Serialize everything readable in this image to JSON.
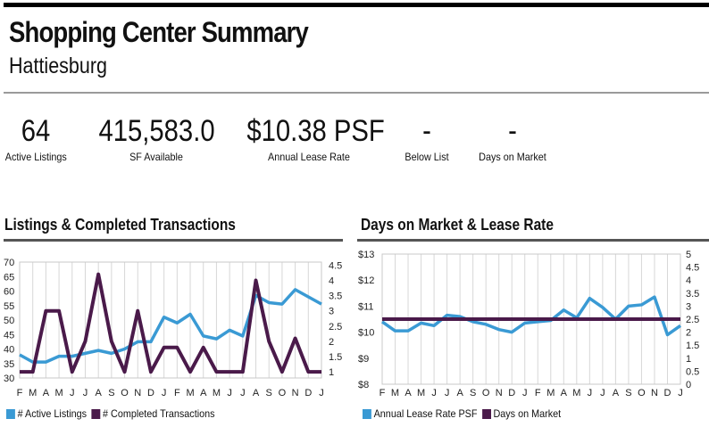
{
  "header": {
    "title": "Shopping Center Summary",
    "subtitle": "Hattiesburg"
  },
  "stats": [
    {
      "value": "64",
      "label": "Active Listings"
    },
    {
      "value": "415,583.0",
      "label": "SF Available"
    },
    {
      "value": "$10.38 PSF",
      "label": "Annual Lease Rate"
    },
    {
      "value": "-",
      "label": "Below List"
    },
    {
      "value": "-",
      "label": "Days on Market"
    }
  ],
  "sections": {
    "left_title": "Listings & Completed Transactions",
    "right_title": "Days on Market & Lease Rate"
  },
  "colors": {
    "blue": "#3a9ad4",
    "purple": "#4a1a4a",
    "grid": "#d7d7d7"
  },
  "chart_data": [
    {
      "type": "line",
      "title": "Listings & Completed Transactions",
      "categories": [
        "F",
        "M",
        "A",
        "M",
        "J",
        "J",
        "A",
        "S",
        "O",
        "N",
        "D",
        "J",
        "F",
        "M",
        "A",
        "M",
        "J",
        "J",
        "A",
        "S",
        "O",
        "N",
        "D",
        "J"
      ],
      "series": [
        {
          "name": "# Active Listings",
          "axis": "left",
          "color": "#3a9ad4",
          "values": [
            38,
            35.5,
            35.5,
            37.5,
            37.5,
            38.5,
            39.5,
            38.5,
            40,
            42.5,
            42.5,
            51,
            49,
            52,
            44.5,
            43.5,
            46.5,
            44.5,
            58.5,
            56,
            55.5,
            60.5,
            58,
            55.5
          ]
        },
        {
          "name": "# Completed Transactions",
          "axis": "right",
          "color": "#4a1a4a",
          "values": [
            1,
            1,
            3,
            3,
            1,
            2,
            4.2,
            2,
            1,
            3,
            1,
            1.8,
            1.8,
            1,
            1.8,
            1,
            1,
            1,
            4,
            2,
            1,
            2.1,
            1,
            1
          ]
        }
      ],
      "yleft": {
        "ticks": [
          "70",
          "65",
          "60",
          "55",
          "50",
          "45",
          "40",
          "35",
          "30"
        ],
        "ylim": [
          30,
          70
        ]
      },
      "yright": {
        "ticks": [
          "4.5",
          "4",
          "3.5",
          "3",
          "2.5",
          "2",
          "1.5",
          "1"
        ],
        "ylim": [
          0.8,
          4.6
        ]
      },
      "grid": true,
      "legend": "bottom-left"
    },
    {
      "type": "line",
      "title": "Days on Market & Lease Rate",
      "categories": [
        "F",
        "M",
        "A",
        "M",
        "J",
        "J",
        "A",
        "S",
        "O",
        "N",
        "D",
        "J",
        "F",
        "M",
        "A",
        "M",
        "J",
        "J",
        "A",
        "S",
        "O",
        "N",
        "D",
        "J"
      ],
      "series": [
        {
          "name": "Annual Lease Rate PSF",
          "axis": "left",
          "color": "#3a9ad4",
          "values": [
            10.4,
            10.05,
            10.05,
            10.35,
            10.25,
            10.65,
            10.6,
            10.4,
            10.3,
            10.1,
            10,
            10.35,
            10.4,
            10.45,
            10.85,
            10.55,
            11.3,
            10.95,
            10.5,
            11,
            11.05,
            11.35,
            9.9,
            10.25
          ]
        },
        {
          "name": "Days on Market",
          "axis": "right",
          "color": "#4a1a4a",
          "values": [
            2.5,
            2.5,
            2.5,
            2.5,
            2.5,
            2.5,
            2.5,
            2.5,
            2.5,
            2.5,
            2.5,
            2.5,
            2.5,
            2.5,
            2.5,
            2.5,
            2.5,
            2.5,
            2.5,
            2.5,
            2.5,
            2.5,
            2.5,
            2.5
          ]
        }
      ],
      "yleft": {
        "ticks": [
          "$13",
          "$12",
          "$11",
          "$10",
          "$9",
          "$8"
        ],
        "ylim": [
          8,
          13
        ]
      },
      "yright": {
        "ticks": [
          "5",
          "4.5",
          "4",
          "3.5",
          "3",
          "2.5",
          "2",
          "1.5",
          "1",
          "0.5",
          "0"
        ],
        "ylim": [
          0,
          5
        ]
      },
      "grid": true,
      "legend": "bottom-left"
    }
  ]
}
